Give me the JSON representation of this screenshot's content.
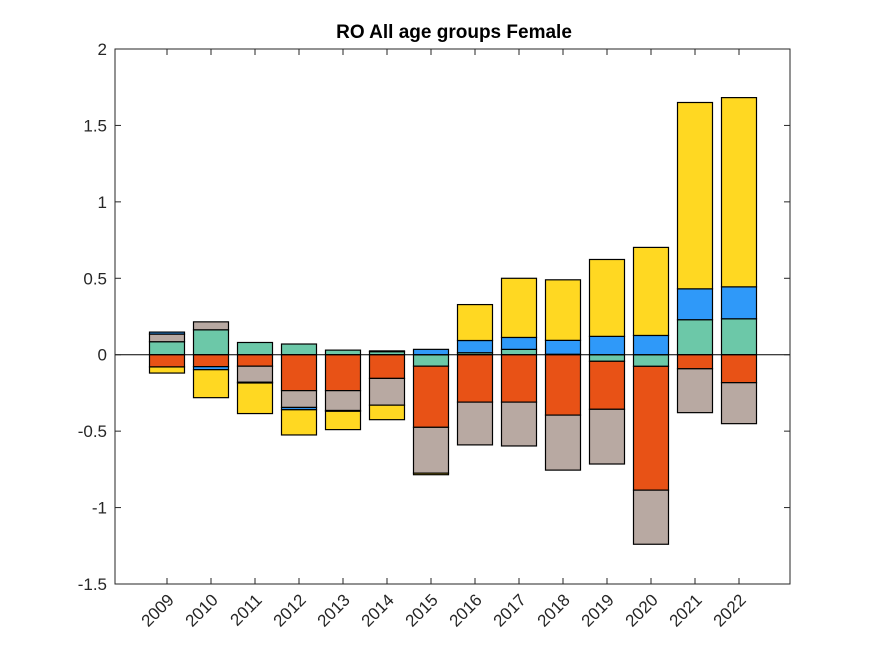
{
  "chart_data": {
    "type": "bar",
    "stacked": true,
    "title": "RO  All age groups  Female",
    "xlabel": "",
    "ylabel": "",
    "ylim": [
      -1.5,
      2
    ],
    "yticks": [
      -1.5,
      -1,
      -0.5,
      0,
      0.5,
      1,
      1.5,
      2
    ],
    "ytick_labels": [
      "-1.5",
      "-1",
      "-0.5",
      "0",
      "0.5",
      "1",
      "1.5",
      "2"
    ],
    "grid": false,
    "legend": "none",
    "categories": [
      "2009",
      "2010",
      "2011",
      "2012",
      "2013",
      "2014",
      "2015",
      "2016",
      "2017",
      "2018",
      "2019",
      "2020",
      "2021",
      "2022"
    ],
    "series": [
      {
        "name": "teal",
        "color": "#6CC8A8",
        "values": [
          0.085,
          0.163,
          0.08,
          0.07,
          0.03,
          0.02,
          -0.075,
          0.013,
          0.035,
          0.003,
          -0.043,
          -0.076,
          0.229,
          0.235
        ]
      },
      {
        "name": "orange",
        "color": "#E85216",
        "values": [
          -0.08,
          -0.078,
          -0.075,
          -0.235,
          -0.235,
          -0.155,
          -0.4,
          -0.31,
          -0.31,
          -0.395,
          -0.314,
          -0.81,
          -0.092,
          -0.183
        ]
      },
      {
        "name": "gray",
        "color": "#B8A9A2",
        "values": [
          0.05,
          0.052,
          -0.105,
          -0.11,
          -0.13,
          -0.175,
          -0.3,
          -0.28,
          -0.287,
          -0.36,
          -0.358,
          -0.354,
          -0.287,
          -0.268
        ]
      },
      {
        "name": "blue",
        "color": "#2F99F9",
        "values": [
          0.013,
          -0.02,
          -0.005,
          -0.015,
          -0.005,
          0.005,
          0.035,
          0.08,
          0.078,
          0.091,
          0.12,
          0.126,
          0.202,
          0.209
        ]
      },
      {
        "name": "yellow",
        "color": "#FFD822",
        "values": [
          -0.04,
          -0.183,
          -0.2,
          -0.165,
          -0.12,
          -0.095,
          -0.01,
          0.235,
          0.387,
          0.396,
          0.503,
          0.576,
          1.219,
          1.238
        ]
      }
    ]
  }
}
